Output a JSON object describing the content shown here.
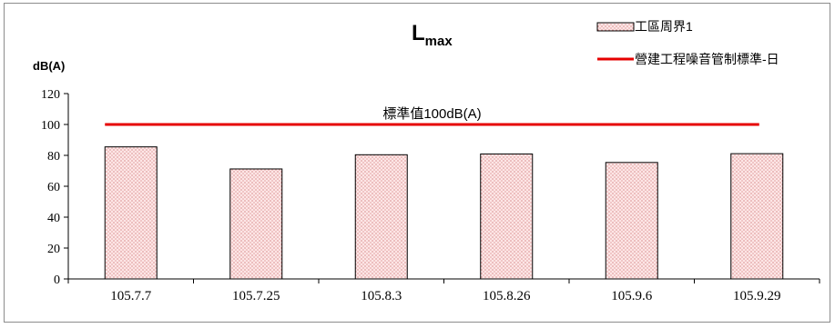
{
  "chart_data": {
    "type": "bar",
    "title": {
      "main": "L",
      "sub": "max"
    },
    "ylabel": "dB(A)",
    "ylim": [
      0,
      120
    ],
    "yticks": [
      0,
      20,
      40,
      60,
      80,
      100,
      120
    ],
    "grid": false,
    "legend_position": "top-right",
    "categories": [
      "105.7.7",
      "105.7.25",
      "105.8.3",
      "105.8.26",
      "105.9.6",
      "105.9.29"
    ],
    "series": [
      {
        "name": "工區周界1",
        "values": [
          85.5,
          71.2,
          80.4,
          80.9,
          75.4,
          81.1
        ]
      }
    ],
    "reference_line": {
      "name": "營建工程噪音管制標準-日",
      "value": 100,
      "label": "標準值100dB(A)",
      "color": "#e60000"
    },
    "bar_fill": "#fde6e6",
    "bar_dot_color": "#b84444",
    "bar_stroke": "#000000"
  }
}
